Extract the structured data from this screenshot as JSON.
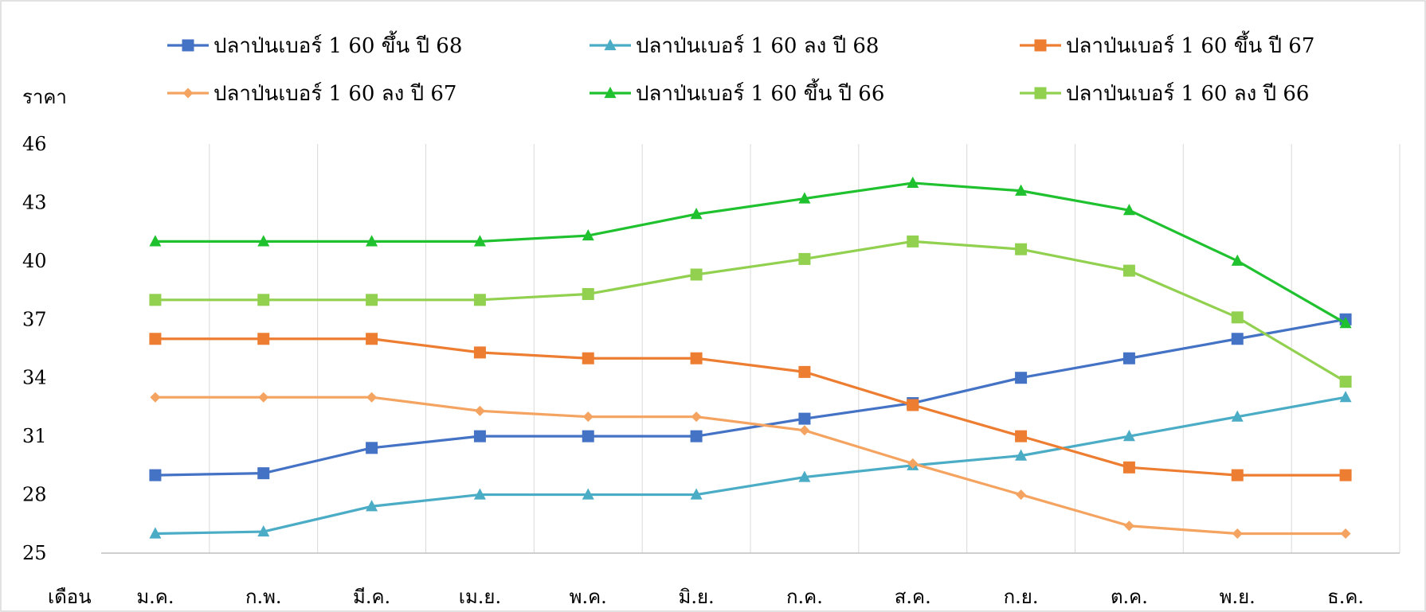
{
  "chart_data": {
    "type": "line",
    "title": "",
    "ylabel": "ราคา",
    "xlabel": "เดือน",
    "ylim": [
      25,
      46
    ],
    "yticks": [
      "25",
      "28",
      "31",
      "34",
      "37",
      "40",
      "43",
      "46"
    ],
    "ytick_values": [
      25,
      28,
      31,
      34,
      37,
      40,
      43,
      46
    ],
    "categories": [
      "ม.ค.",
      "ก.พ.",
      "มี.ค.",
      "เม.ย.",
      "พ.ค.",
      "มิ.ย.",
      "ก.ค.",
      "ส.ค.",
      "ก.ย.",
      "ต.ค.",
      "พ.ย.",
      "ธ.ค."
    ],
    "grid": "vertical",
    "legend_position": "top",
    "series": [
      {
        "name": "ปลาป่นเบอร์ 1 60 ขึ้น ปี 68",
        "color": "#4472C4",
        "marker": "square",
        "values": [
          29,
          29.1,
          30.4,
          31,
          31,
          31,
          31.9,
          32.7,
          34,
          35,
          36,
          37
        ]
      },
      {
        "name": "ปลาป่นเบอร์ 1 60 ลง ปี 68",
        "color": "#4BACC6",
        "marker": "triangle",
        "values": [
          26,
          26.1,
          27.4,
          28,
          28,
          28,
          28.9,
          29.5,
          30,
          31,
          32,
          33
        ]
      },
      {
        "name": "ปลาป่นเบอร์ 1 60 ขึ้น ปี 67",
        "color": "#ED7D31",
        "marker": "square",
        "values": [
          36,
          36,
          36,
          35.3,
          35,
          35,
          34.3,
          32.6,
          31,
          29.4,
          29,
          29
        ]
      },
      {
        "name": "ปลาป่นเบอร์ 1 60 ลง ปี 67",
        "color": "#F4A460",
        "marker": "diamond",
        "values": [
          33,
          33,
          33,
          32.3,
          32,
          32,
          31.3,
          29.6,
          28,
          26.4,
          26,
          26
        ]
      },
      {
        "name": "ปลาป่นเบอร์ 1 60 ขึ้น ปี 66",
        "color": "#1FC12F",
        "marker": "triangle",
        "values": [
          41,
          41,
          41,
          41,
          41.3,
          42.4,
          43.2,
          44,
          43.6,
          42.6,
          40,
          36.8
        ]
      },
      {
        "name": "ปลาป่นเบอร์ 1 60 ลง ปี 66",
        "color": "#92D050",
        "marker": "square",
        "values": [
          38,
          38,
          38,
          38,
          38.3,
          39.3,
          40.1,
          41,
          40.6,
          39.5,
          37.1,
          33.8
        ]
      }
    ]
  }
}
